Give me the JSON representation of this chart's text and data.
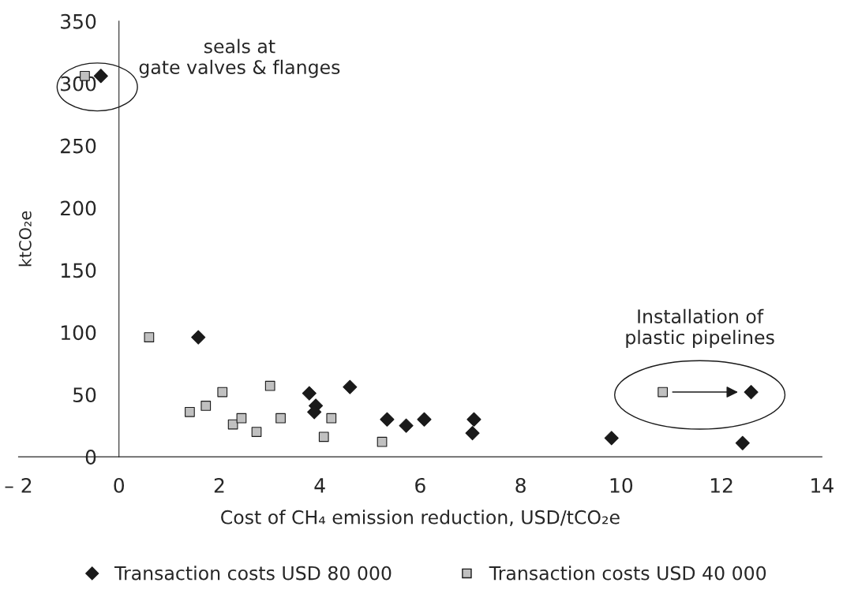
{
  "chart_data": {
    "type": "scatter",
    "xlabel": "Cost of CH₄ emission reduction, USD/tCO₂e",
    "ylabel": "ktCO₂e",
    "xlim": [
      -2,
      14
    ],
    "xticks": [
      {
        "value": -2,
        "label": "– 2"
      },
      0,
      2,
      4,
      6,
      8,
      10,
      12,
      14
    ],
    "ylim": [
      0,
      350
    ],
    "yticks": [
      0,
      50,
      100,
      150,
      200,
      250,
      300,
      350
    ],
    "grid": false,
    "legend": "bottom",
    "annotations": [
      "seals at\ngate valves & flanges",
      "Installation of\nplastic pipelines"
    ],
    "series": [
      {
        "name": "Transaction costs USD 80 000",
        "color": "#1a1a1a",
        "marker": "diamond",
        "x": [
          -0.36,
          1.58,
          3.79,
          3.92,
          3.89,
          4.6,
          5.34,
          5.72,
          6.08,
          7.07,
          7.04,
          9.81,
          12.42,
          12.59
        ],
        "values": [
          306,
          96,
          51,
          41,
          36,
          56,
          30,
          25,
          30,
          30,
          19,
          15,
          11,
          52
        ]
      },
      {
        "name": "Transaction costs USD 40 000",
        "color": "#c0c0c0",
        "marker": "square",
        "x": [
          -0.68,
          0.6,
          1.41,
          1.73,
          2.06,
          2.27,
          2.44,
          2.74,
          3.01,
          3.22,
          4.08,
          4.23,
          5.24,
          10.83
        ],
        "values": [
          306,
          96,
          36,
          41,
          52,
          26,
          31,
          20,
          57,
          31,
          16,
          31,
          12,
          52
        ]
      }
    ]
  }
}
